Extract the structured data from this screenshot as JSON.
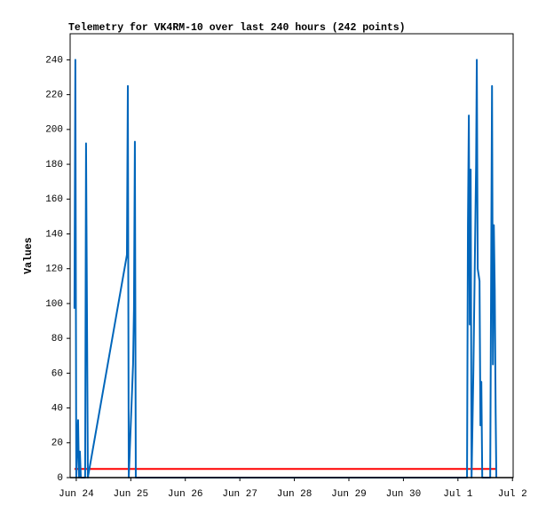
{
  "chart_data": {
    "type": "line",
    "title": "Telemetry for VK4RM-10 over last 240 hours (242 points)",
    "y_label": "Values",
    "xlim": [
      -2.7,
      192.3
    ],
    "xticks": [
      {
        "value": 0,
        "label": "Jun 24"
      },
      {
        "value": 24,
        "label": "Jun 25"
      },
      {
        "value": 48,
        "label": "Jun 26"
      },
      {
        "value": 72,
        "label": "Jun 27"
      },
      {
        "value": 96,
        "label": "Jun 28"
      },
      {
        "value": 120,
        "label": "Jun 29"
      },
      {
        "value": 144,
        "label": "Jun 30"
      },
      {
        "value": 168,
        "label": "Jul 1"
      },
      {
        "value": 192,
        "label": "Jul 2"
      }
    ],
    "ylim": [
      0,
      255
    ],
    "yticks": [
      0,
      20,
      40,
      60,
      80,
      100,
      120,
      140,
      160,
      180,
      200,
      220,
      240
    ],
    "series": [
      {
        "color": "#ff0000",
        "x": [
          -0.8,
          184.6
        ],
        "values": [
          5,
          5
        ]
      },
      {
        "color": "#0066bb",
        "x": [
          -0.8,
          -0.4,
          0,
          0.4,
          0.8,
          1.2,
          1.6,
          2.0,
          3.9,
          4.3,
          4.7,
          5.1,
          22.3,
          22.7,
          23.1,
          25.0,
          25.4,
          25.8,
          26.2,
          172.0,
          172.4,
          172.8,
          173.2,
          173.6,
          174.0,
          174.8,
          176.0,
          176.3,
          176.7,
          177.5,
          177.9,
          178.3,
          178.7,
          182.2,
          182.6,
          183.0,
          183.4,
          183.8,
          184.2,
          184.6,
          184.9
        ],
        "values": [
          97,
          240,
          0,
          17,
          33,
          0,
          15,
          0,
          0,
          192,
          97,
          0,
          128,
          225,
          0,
          65,
          97,
          193,
          0,
          0,
          145,
          208,
          88,
          177,
          0,
          62,
          180,
          240,
          120,
          113,
          30,
          55,
          0,
          0,
          112,
          225,
          65,
          145,
          108,
          37,
          0
        ]
      }
    ]
  }
}
